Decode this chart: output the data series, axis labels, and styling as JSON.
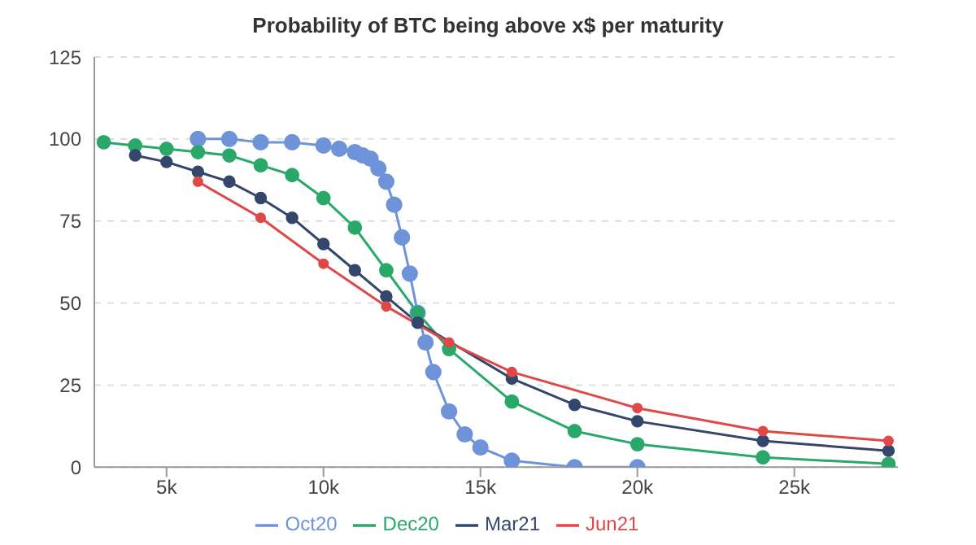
{
  "chart_data": {
    "type": "line",
    "title": "Probability of BTC being above x$ per maturity",
    "xlim": [
      2.7,
      28.3
    ],
    "xticks": [
      {
        "value": 5,
        "label": "5k"
      },
      {
        "value": 10,
        "label": "10k"
      },
      {
        "value": 15,
        "label": "15k"
      },
      {
        "value": 20,
        "label": "20k"
      },
      {
        "value": 25,
        "label": "25k"
      }
    ],
    "ylim": [
      0,
      125
    ],
    "yticks": [
      0,
      25,
      50,
      75,
      100,
      125
    ],
    "grid": "y",
    "legend": "bottom",
    "marker": "circle",
    "line_style": "solid",
    "series": [
      {
        "name": "Oct20",
        "color": "#6f93d8",
        "x": [
          6,
          7,
          8,
          9,
          10,
          10.5,
          11,
          11.25,
          11.5,
          11.75,
          12,
          12.25,
          12.5,
          12.75,
          13,
          13.25,
          13.5,
          14,
          14.5,
          15,
          16,
          18,
          20
        ],
        "values": [
          100,
          100,
          99,
          99,
          98,
          97,
          96,
          95,
          94,
          91,
          87,
          80,
          70,
          59,
          47,
          38,
          29,
          17,
          10,
          6,
          2,
          0,
          0
        ]
      },
      {
        "name": "Dec20",
        "color": "#2aa86a",
        "x": [
          3,
          4,
          5,
          6,
          7,
          8,
          9,
          10,
          11,
          12,
          13,
          14,
          16,
          18,
          20,
          24,
          28
        ],
        "values": [
          99,
          98,
          97,
          96,
          95,
          92,
          89,
          82,
          73,
          60,
          47,
          36,
          20,
          11,
          7,
          3,
          1
        ]
      },
      {
        "name": "Mar21",
        "color": "#34466b",
        "x": [
          4,
          5,
          6,
          7,
          8,
          9,
          10,
          11,
          12,
          13,
          16,
          18,
          20,
          24,
          28
        ],
        "values": [
          95,
          93,
          90,
          87,
          82,
          76,
          68,
          60,
          52,
          44,
          27,
          19,
          14,
          8,
          5
        ]
      },
      {
        "name": "Jun21",
        "color": "#e04848",
        "x": [
          6,
          8,
          10,
          12,
          14,
          16,
          20,
          24,
          28
        ],
        "values": [
          87,
          76,
          62,
          49,
          38,
          29,
          18,
          11,
          8
        ]
      }
    ]
  }
}
